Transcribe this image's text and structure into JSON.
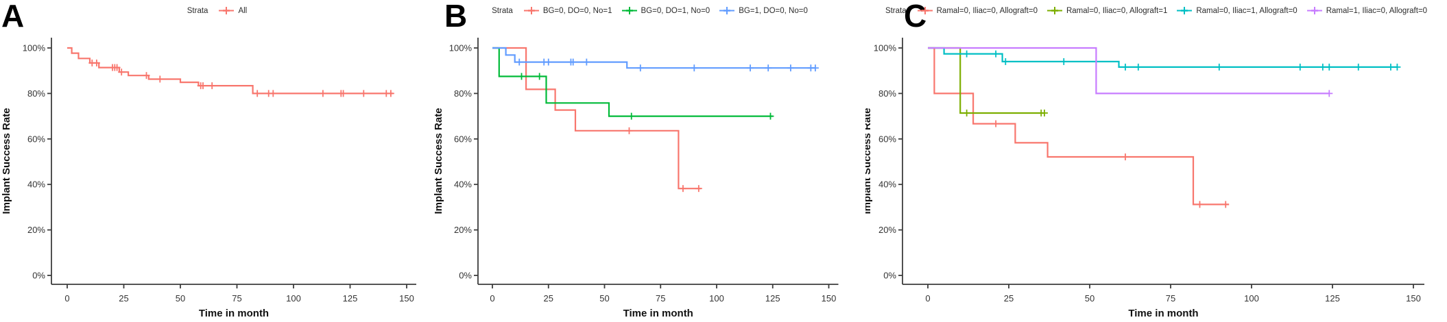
{
  "figure": {
    "background": "#ffffff",
    "axis_color": "#3c3c3c",
    "panel_labels": [
      "A",
      "B",
      "C"
    ]
  },
  "chart_data": [
    {
      "type": "line",
      "subtype": "kaplan-meier-step",
      "panel_label": "A",
      "xlabel": "Time in month",
      "ylabel": "Implant Success Rate",
      "x_ticks": [
        0,
        25,
        50,
        75,
        100,
        125,
        150
      ],
      "y_tick_values": [
        0,
        20,
        40,
        60,
        80,
        100
      ],
      "y_tick_labels": [
        "0%",
        "20%",
        "40%",
        "60%",
        "80%",
        "100%"
      ],
      "xlim": [
        0,
        157
      ],
      "ylim": [
        0,
        100
      ],
      "grid": false,
      "legend_title": "Strata",
      "legend_position": "top",
      "series": [
        {
          "name": "All",
          "color": "#F8766D",
          "steps": [
            [
              0,
              100
            ],
            [
              2,
              97.7
            ],
            [
              5,
              95.4
            ],
            [
              10,
              93.4
            ],
            [
              14,
              91.4
            ],
            [
              23,
              89.4
            ],
            [
              27,
              87.9
            ],
            [
              36,
              86.3
            ],
            [
              50,
              84.9
            ],
            [
              58,
              83.4
            ],
            [
              82,
              80
            ],
            [
              144,
              80
            ]
          ],
          "censors": [
            [
              11,
              93.4
            ],
            [
              13,
              93.4
            ],
            [
              20,
              91.4
            ],
            [
              21,
              91.4
            ],
            [
              22,
              91.4
            ],
            [
              24,
              89.4
            ],
            [
              35,
              87.9
            ],
            [
              41,
              86.3
            ],
            [
              59,
              83.4
            ],
            [
              60,
              83.4
            ],
            [
              64,
              83.4
            ],
            [
              84,
              80
            ],
            [
              89,
              80
            ],
            [
              91,
              80
            ],
            [
              113,
              80
            ],
            [
              121,
              80
            ],
            [
              122,
              80
            ],
            [
              131,
              80
            ],
            [
              141,
              80
            ],
            [
              143,
              80
            ]
          ]
        }
      ]
    },
    {
      "type": "line",
      "subtype": "kaplan-meier-step",
      "panel_label": "B",
      "xlabel": "Time in month",
      "ylabel": "Implant Success Rate",
      "x_ticks": [
        0,
        25,
        50,
        75,
        100,
        125,
        150
      ],
      "y_tick_values": [
        0,
        20,
        40,
        60,
        80,
        100
      ],
      "y_tick_labels": [
        "0%",
        "20%",
        "40%",
        "60%",
        "80%",
        "100%"
      ],
      "xlim": [
        0,
        157
      ],
      "ylim": [
        0,
        100
      ],
      "grid": false,
      "legend_title": "Strata",
      "legend_position": "top",
      "series": [
        {
          "name": "BG=0, DO=0, No=1",
          "color": "#F8766D",
          "steps": [
            [
              0,
              100
            ],
            [
              15,
              81.8
            ],
            [
              28,
              72.7
            ],
            [
              37,
              63.6
            ],
            [
              83,
              38.2
            ],
            [
              93,
              38.2
            ]
          ],
          "censors": [
            [
              61,
              63.6
            ],
            [
              85,
              38.2
            ],
            [
              92,
              38.2
            ]
          ]
        },
        {
          "name": "BG=0, DO=1, No=0",
          "color": "#00BA38",
          "steps": [
            [
              0,
              100
            ],
            [
              3,
              87.5
            ],
            [
              24,
              75.8
            ],
            [
              52,
              70
            ],
            [
              125,
              70
            ]
          ],
          "censors": [
            [
              13,
              87.5
            ],
            [
              21,
              87.5
            ],
            [
              62,
              70
            ],
            [
              124,
              70
            ]
          ]
        },
        {
          "name": "BG=1, DO=0, No=0",
          "color": "#619CFF",
          "steps": [
            [
              0,
              100
            ],
            [
              6,
              96.9
            ],
            [
              10,
              93.8
            ],
            [
              60,
              91.2
            ],
            [
              144,
              91.2
            ]
          ],
          "censors": [
            [
              12,
              93.8
            ],
            [
              23,
              93.8
            ],
            [
              25,
              93.8
            ],
            [
              35,
              93.8
            ],
            [
              36,
              93.8
            ],
            [
              42,
              93.8
            ],
            [
              66,
              91.2
            ],
            [
              90,
              91.2
            ],
            [
              115,
              91.2
            ],
            [
              123,
              91.2
            ],
            [
              133,
              91.2
            ],
            [
              142,
              91.2
            ],
            [
              144,
              91.2
            ]
          ]
        }
      ]
    },
    {
      "type": "line",
      "subtype": "kaplan-meier-step",
      "panel_label": "C",
      "xlabel": "Time in month",
      "ylabel": "Implant Success Rate",
      "x_ticks": [
        0,
        25,
        50,
        75,
        100,
        125,
        150
      ],
      "y_tick_values": [
        0,
        20,
        40,
        60,
        80,
        100
      ],
      "y_tick_labels": [
        "0%",
        "20%",
        "40%",
        "60%",
        "80%",
        "100%"
      ],
      "xlim": [
        0,
        157
      ],
      "ylim": [
        0,
        100
      ],
      "grid": false,
      "legend_title": "Strata",
      "legend_position": "top",
      "series": [
        {
          "name": "Ramal=0, Iliac=0, Allograft=0",
          "color": "#F8766D",
          "steps": [
            [
              0,
              100
            ],
            [
              2,
              80
            ],
            [
              14,
              66.7
            ],
            [
              27,
              58.3
            ],
            [
              37,
              52.1
            ],
            [
              82,
              31.2
            ],
            [
              93,
              31.2
            ]
          ],
          "censors": [
            [
              21,
              66.7
            ],
            [
              61,
              52.1
            ],
            [
              84,
              31.2
            ],
            [
              92,
              31.2
            ]
          ]
        },
        {
          "name": "Ramal=0, Iliac=0, Allograft=1",
          "color": "#7CAE00",
          "steps": [
            [
              0,
              100
            ],
            [
              10,
              71.4
            ],
            [
              36,
              71.4
            ]
          ],
          "censors": [
            [
              12,
              71.4
            ],
            [
              35,
              71.4
            ],
            [
              36,
              71.4
            ]
          ]
        },
        {
          "name": "Ramal=0, Iliac=1, Allograft=0",
          "color": "#00BFC4",
          "steps": [
            [
              0,
              100
            ],
            [
              5,
              97.4
            ],
            [
              23,
              94
            ],
            [
              59,
              91.6
            ],
            [
              145,
              91.6
            ]
          ],
          "censors": [
            [
              12,
              97.4
            ],
            [
              21,
              97.4
            ],
            [
              24,
              94
            ],
            [
              42,
              94
            ],
            [
              61,
              91.6
            ],
            [
              65,
              91.6
            ],
            [
              90,
              91.6
            ],
            [
              115,
              91.6
            ],
            [
              122,
              91.6
            ],
            [
              124,
              91.6
            ],
            [
              133,
              91.6
            ],
            [
              143,
              91.6
            ],
            [
              145,
              91.6
            ]
          ]
        },
        {
          "name": "Ramal=1, Iliac=0, Allograft=0",
          "color": "#C77CFF",
          "steps": [
            [
              0,
              100
            ],
            [
              52,
              80
            ],
            [
              124,
              80
            ]
          ],
          "censors": [
            [
              124,
              80
            ]
          ]
        }
      ]
    }
  ]
}
